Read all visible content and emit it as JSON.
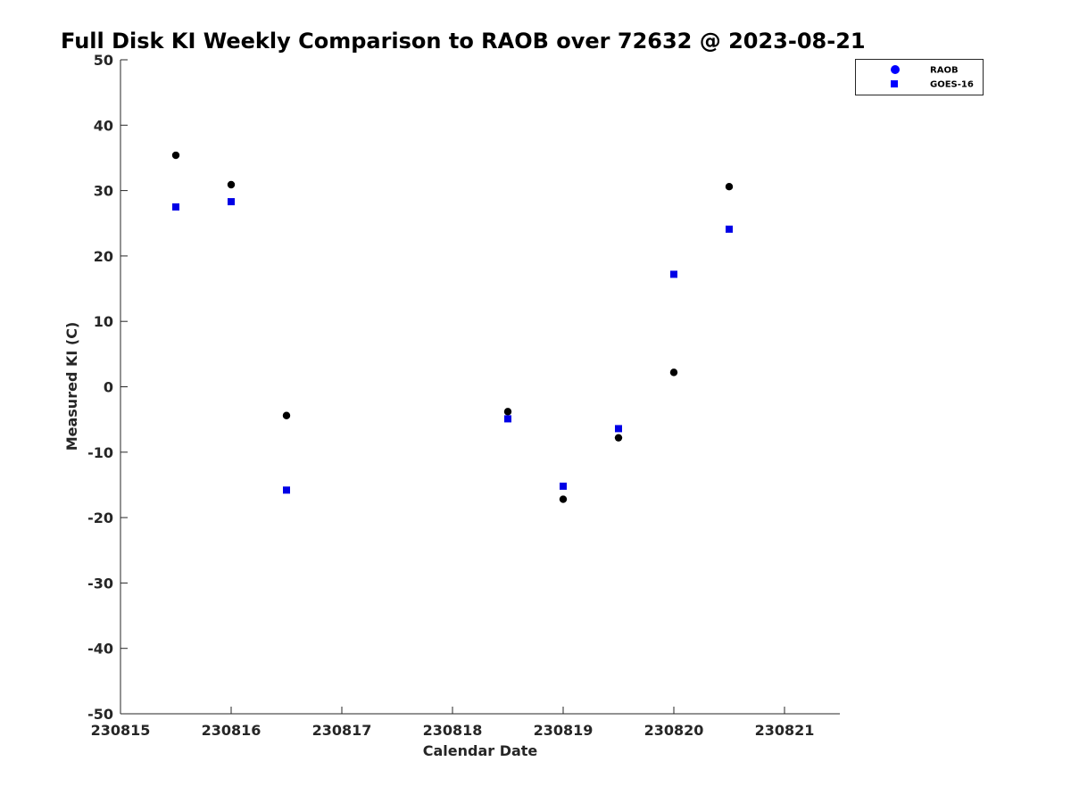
{
  "chart_data": {
    "type": "scatter",
    "title": "Full Disk KI Weekly Comparison to RAOB over 72632 @ 2023-08-21",
    "xlabel": "Calendar Date",
    "ylabel": "Measured KI (C)",
    "xlim": [
      230815,
      230821.5
    ],
    "ylim": [
      -50,
      50
    ],
    "xticks": [
      230815,
      230816,
      230817,
      230818,
      230819,
      230820,
      230821
    ],
    "xtick_labels": [
      "230815",
      "230816",
      "230817",
      "230818",
      "230819",
      "230820",
      "230821"
    ],
    "yticks": [
      -50,
      -40,
      -30,
      -20,
      -10,
      0,
      10,
      20,
      30,
      40,
      50
    ],
    "ytick_labels": [
      "-50",
      "-40",
      "-30",
      "-20",
      "-10",
      "0",
      "10",
      "20",
      "30",
      "40",
      "50"
    ],
    "grid": false,
    "legend_position": "top-right, outside plot area",
    "series": [
      {
        "name": "RAOB",
        "marker": "circle",
        "color": "#000000",
        "legend_color": "#0000ff",
        "x": [
          230815.5,
          230816.0,
          230816.5,
          230818.5,
          230819.0,
          230819.5,
          230820.0,
          230820.5
        ],
        "y": [
          35.4,
          30.9,
          -4.4,
          -3.8,
          -17.2,
          -7.8,
          2.2,
          30.6
        ]
      },
      {
        "name": "GOES-16",
        "marker": "square",
        "color": "#0000e6",
        "legend_color": "#0000ff",
        "x": [
          230815.5,
          230816.0,
          230816.5,
          230818.5,
          230819.0,
          230819.5,
          230820.0,
          230820.5
        ],
        "y": [
          27.5,
          28.3,
          -15.8,
          -4.9,
          -15.2,
          -6.4,
          17.2,
          24.1
        ]
      }
    ]
  }
}
